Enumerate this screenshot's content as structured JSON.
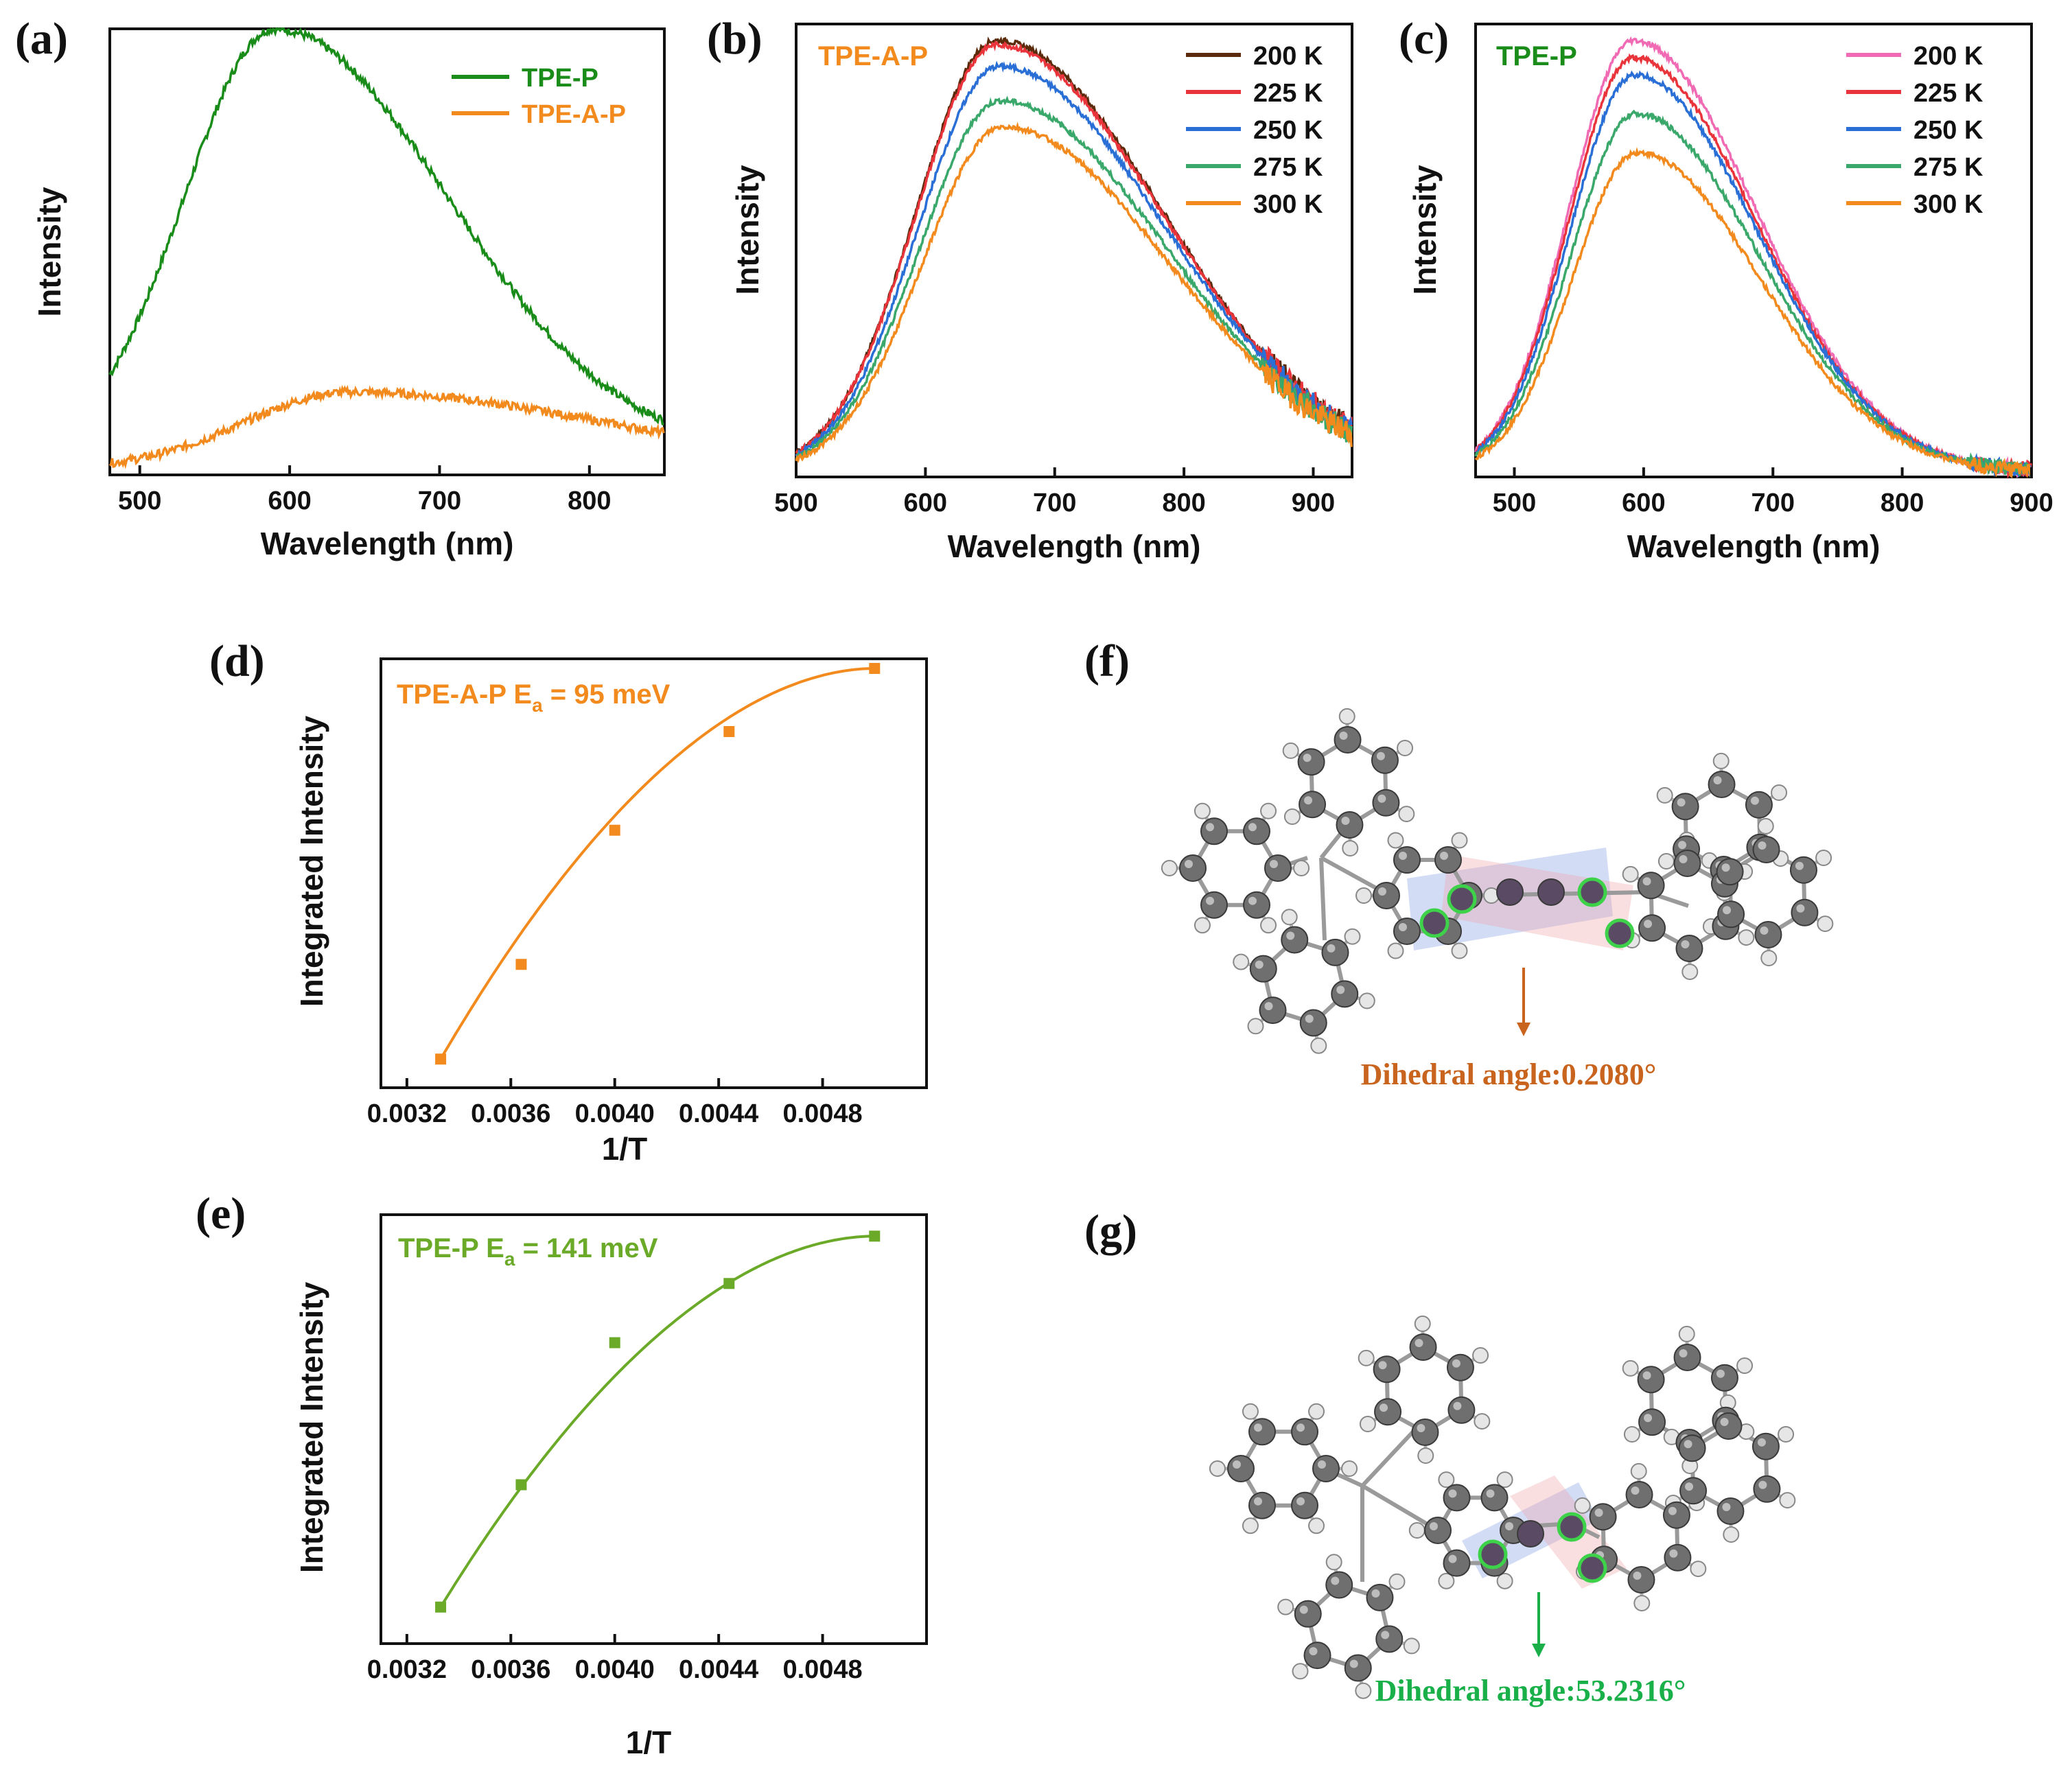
{
  "panels": {
    "a": "(a)",
    "b": "(b)",
    "c": "(c)",
    "d": "(d)",
    "e": "(e)",
    "f": "(f)",
    "g": "(g)"
  },
  "colors": {
    "tpe_p": "#1a8c1a",
    "tpe_a_p": "#f28a1e",
    "t200_b": "#5a2a0a",
    "t200_c": "#f06ab4",
    "t225": "#e8343a",
    "t250": "#2a6fd6",
    "t275": "#3aa86a",
    "t300": "#f28a1e",
    "fit_e": "#6aaa28",
    "dih_f": "#c8641e",
    "dih_g": "#19b04a"
  },
  "chart_data": [
    {
      "id": "a",
      "type": "line",
      "xlabel": "Wavelength (nm)",
      "ylabel": "Intensity",
      "xlim": [
        480,
        850
      ],
      "ylim": [
        0,
        1.05
      ],
      "xticks": [
        500,
        600,
        700,
        800
      ],
      "series": [
        {
          "name": "TPE-P",
          "color": "#1a8c1a",
          "peak": 590,
          "amp": 1.0,
          "base": 0.0,
          "sigL": 60,
          "sigR": 115,
          "baseline": 0.05
        },
        {
          "name": "TPE-A-P",
          "color": "#f28a1e",
          "peak": 640,
          "amp": 0.18,
          "sigL": 70,
          "sigR": 170,
          "baseline": 0.015
        }
      ]
    },
    {
      "id": "b",
      "type": "line",
      "title": "TPE-A-P",
      "xlabel": "Wavelength (nm)",
      "ylabel": "Intensity",
      "xlim": [
        500,
        930
      ],
      "ylim": [
        0,
        1.05
      ],
      "xticks": [
        500,
        600,
        700,
        800,
        900
      ],
      "series": [
        {
          "name": "200 K",
          "color": "#5a2a0a",
          "peak": 655,
          "amp": 1.0
        },
        {
          "name": "225 K",
          "color": "#e8343a",
          "peak": 655,
          "amp": 0.99
        },
        {
          "name": "250 K",
          "color": "#2a6fd6",
          "peak": 657,
          "amp": 0.94
        },
        {
          "name": "275 K",
          "color": "#3aa86a",
          "peak": 658,
          "amp": 0.86
        },
        {
          "name": "300 K",
          "color": "#f28a1e",
          "peak": 660,
          "amp": 0.8
        }
      ]
    },
    {
      "id": "c",
      "type": "line",
      "title": "TPE-P",
      "xlabel": "Wavelength (nm)",
      "ylabel": "Intensity",
      "xlim": [
        470,
        900
      ],
      "ylim": [
        0,
        1.05
      ],
      "xticks": [
        500,
        600,
        700,
        800,
        900
      ],
      "series": [
        {
          "name": "200 K",
          "color": "#f06ab4",
          "peak": 592,
          "amp": 1.0
        },
        {
          "name": "225 K",
          "color": "#e8343a",
          "peak": 592,
          "amp": 0.96
        },
        {
          "name": "250 K",
          "color": "#2a6fd6",
          "peak": 593,
          "amp": 0.92
        },
        {
          "name": "275 K",
          "color": "#3aa86a",
          "peak": 594,
          "amp": 0.83
        },
        {
          "name": "300 K",
          "color": "#f28a1e",
          "peak": 595,
          "amp": 0.74
        }
      ]
    },
    {
      "id": "d",
      "type": "scatter",
      "annotation": "TPE-A-P  E",
      "annotation_sub": "a",
      "annotation_tail": " = 95 meV",
      "xlabel": "1/T",
      "ylabel": "Integrated Intensity",
      "xlim": [
        0.0031,
        0.0052
      ],
      "ylim": [
        0,
        1.0
      ],
      "xticks": [
        "0.0032",
        "0.0036",
        "0.0040",
        "0.0044",
        "0.0048"
      ],
      "x": [
        0.00333,
        0.00364,
        0.004,
        0.00444,
        0.005
      ],
      "y": [
        0.04,
        0.28,
        0.62,
        0.87,
        1.03
      ],
      "fit": {
        "k": 1.0,
        "c": 0.75
      },
      "color": "#f28a1e"
    },
    {
      "id": "e",
      "type": "scatter",
      "annotation": "TPE-P     E",
      "annotation_sub": "a",
      "annotation_tail": " = 141 meV",
      "xlabel": "1/T",
      "ylabel": "Integrated Intensity",
      "xlim": [
        0.0031,
        0.0052
      ],
      "ylim": [
        0,
        1.0
      ],
      "xticks": [
        "0.0032",
        "0.0036",
        "0.0040",
        "0.0044",
        "0.0048"
      ],
      "x": [
        0.00333,
        0.00364,
        0.004,
        0.00444,
        0.005
      ],
      "y": [
        0.06,
        0.37,
        0.73,
        0.88,
        1.0
      ],
      "color": "#6aaa28"
    }
  ],
  "molecules": {
    "f": {
      "caption": "Dihedral angle:0.2080°"
    },
    "g": {
      "caption": "Dihedral angle:53.2316°"
    }
  }
}
